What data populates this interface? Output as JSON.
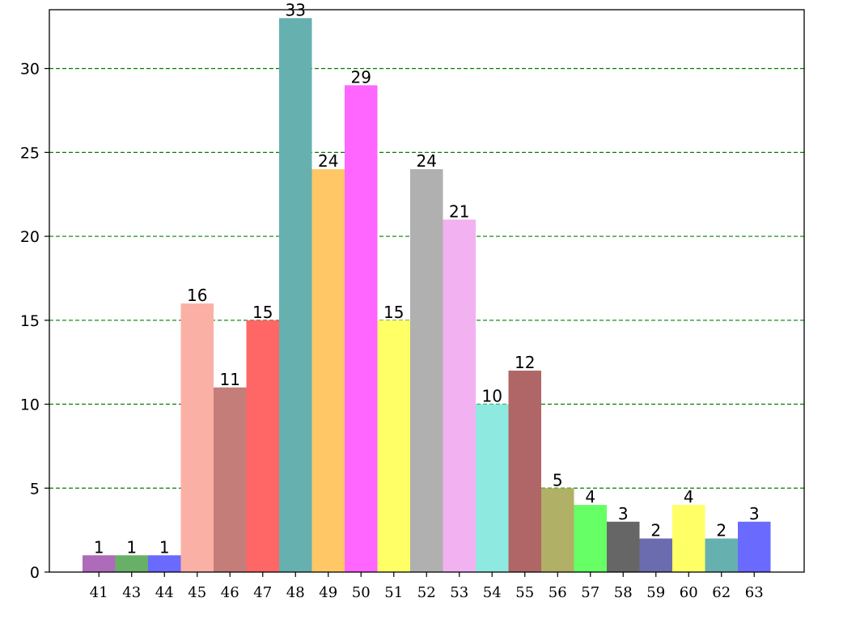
{
  "chart_data": {
    "type": "bar",
    "title": "",
    "xlabel": "",
    "ylabel": "",
    "categories": [
      "41",
      "43",
      "44",
      "45",
      "46",
      "47",
      "48",
      "49",
      "50",
      "51",
      "52",
      "53",
      "54",
      "55",
      "56",
      "57",
      "58",
      "59",
      "60",
      "62",
      "63"
    ],
    "values": [
      1,
      1,
      1,
      16,
      11,
      15,
      33,
      24,
      29,
      15,
      24,
      21,
      10,
      12,
      5,
      4,
      3,
      2,
      4,
      2,
      3
    ],
    "bar_colors": [
      "#ae6bb9",
      "#68b068",
      "#6a6aff",
      "#fbb0a6",
      "#c47d79",
      "#ff6666",
      "#66b0b0",
      "#ffc766",
      "#ff66ff",
      "#ffff66",
      "#b0b0b0",
      "#f2b2f2",
      "#8ee9e0",
      "#b06666",
      "#b0b066",
      "#66ff66",
      "#666666",
      "#6b6bb0",
      "#ffff66",
      "#66b0b0",
      "#6a6aff"
    ],
    "ylim": [
      0,
      33.5
    ],
    "yticks": [
      0,
      5,
      10,
      15,
      20,
      25,
      30
    ],
    "grid": {
      "axis": "y",
      "style": "dashed",
      "color": "#008000"
    }
  }
}
